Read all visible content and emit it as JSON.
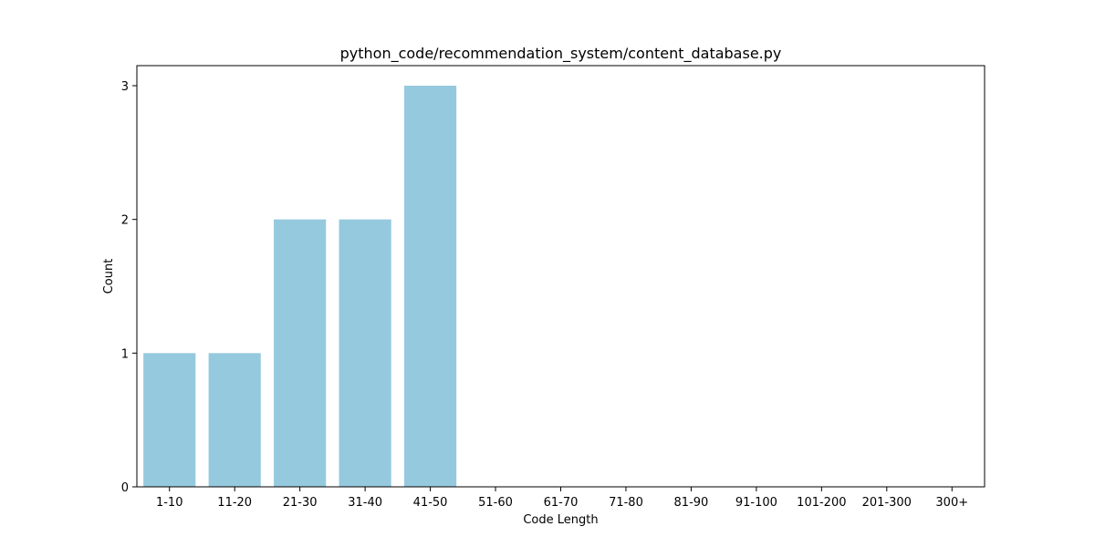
{
  "chart_data": {
    "type": "bar",
    "title": "python_code/recommendation_system/content_database.py",
    "xlabel": "Code Length",
    "ylabel": "Count",
    "categories": [
      "1-10",
      "11-20",
      "21-30",
      "31-40",
      "41-50",
      "51-60",
      "61-70",
      "71-80",
      "81-90",
      "91-100",
      "101-200",
      "201-300",
      "300+"
    ],
    "values": [
      1,
      1,
      2,
      2,
      3,
      0,
      0,
      0,
      0,
      0,
      0,
      0,
      0
    ],
    "ylim": [
      0,
      3.15
    ],
    "yticks": [
      0,
      1,
      2,
      3
    ],
    "bar_color": "#95c9de",
    "grid": false,
    "legend": "none"
  }
}
